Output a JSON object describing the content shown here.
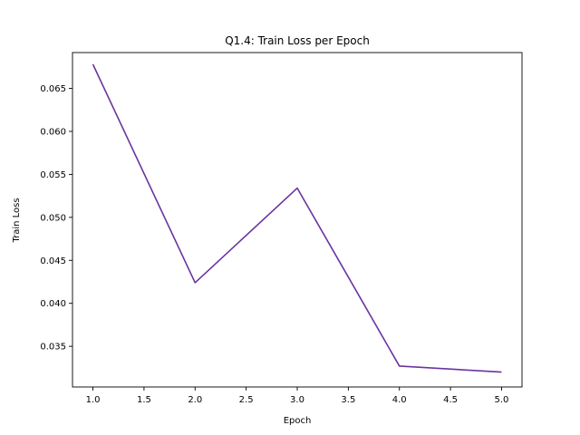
{
  "chart_data": {
    "type": "line",
    "title": "Q1.4: Train Loss per Epoch",
    "xlabel": "Epoch",
    "ylabel": "Train Loss",
    "x": [
      1.0,
      2.0,
      3.0,
      4.0,
      5.0
    ],
    "series": [
      {
        "values": [
          0.0678,
          0.0424,
          0.0534,
          0.0327,
          0.032
        ],
        "color": "#6a34a0"
      }
    ],
    "xlim": [
      0.8,
      5.2
    ],
    "ylim": [
      0.03027,
      0.06917
    ],
    "xticks": [
      1.0,
      1.5,
      2.0,
      2.5,
      3.0,
      3.5,
      4.0,
      4.5,
      5.0
    ],
    "xtick_labels": [
      "1.0",
      "1.5",
      "2.0",
      "2.5",
      "3.0",
      "3.5",
      "4.0",
      "4.5",
      "5.0"
    ],
    "yticks": [
      0.035,
      0.04,
      0.045,
      0.05,
      0.055,
      0.06,
      0.065
    ],
    "ytick_labels": [
      "0.035",
      "0.040",
      "0.045",
      "0.050",
      "0.055",
      "0.060",
      "0.065"
    ],
    "grid": false,
    "legend": false
  }
}
